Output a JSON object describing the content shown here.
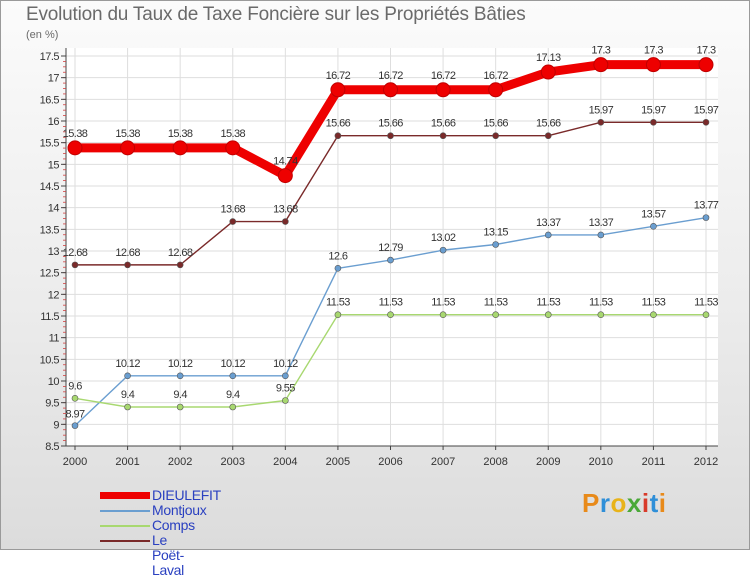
{
  "title": "Evolution du Taux de Taxe Foncière sur les Propriétés Bâties",
  "unit": "(en %)",
  "logo": {
    "text": "Proxiti",
    "letter_colors": [
      "#e88a1a",
      "#2f8fd8",
      "#e8b31a",
      "#4aa838",
      "#d83a2a",
      "#2f8fd8",
      "#e88a1a"
    ]
  },
  "chart_data": {
    "type": "line",
    "title": "Evolution du Taux de Taxe Foncière sur les Propriétés Bâties",
    "ylabel": "(en %)",
    "xlabel": "",
    "ylim": [
      8.5,
      17.5
    ],
    "y_ticks": [
      "8.5",
      "9",
      "9.5",
      "10",
      "10.5",
      "11",
      "11.5",
      "12",
      "12.5",
      "13",
      "13.5",
      "14",
      "14.5",
      "15",
      "15.5",
      "16",
      "16.5",
      "17",
      "17.5"
    ],
    "x": [
      "2000",
      "2001",
      "2002",
      "2003",
      "2004",
      "2005",
      "2006",
      "2007",
      "2008",
      "2009",
      "2010",
      "2011",
      "2012"
    ],
    "legend_position": "bottom-left",
    "series": [
      {
        "name": "DIEULEFIT",
        "color": "#ee0000",
        "values": [
          15.38,
          15.38,
          15.38,
          15.38,
          14.74,
          16.72,
          16.72,
          16.72,
          16.72,
          17.13,
          17.3,
          17.3,
          17.3
        ],
        "labels": [
          "15.38",
          "15.38",
          "15.38",
          "15.38",
          "14.74",
          "16.72",
          "16.72",
          "16.72",
          "16.72",
          "17.13",
          "17.3",
          "17.3",
          "17.3"
        ]
      },
      {
        "name": "Montjoux",
        "color": "#6a9ed0",
        "values": [
          8.97,
          10.12,
          10.12,
          10.12,
          10.12,
          12.6,
          12.79,
          13.02,
          13.15,
          13.37,
          13.37,
          13.57,
          13.77
        ],
        "labels": [
          "8.97",
          "10.12",
          "10.12",
          "10.12",
          "10.12",
          "12.6",
          "12.79",
          "13.02",
          "13.15",
          "13.37",
          "13.37",
          "13.57",
          "13.77"
        ]
      },
      {
        "name": "Comps",
        "color": "#a8d870",
        "values": [
          9.6,
          9.4,
          9.4,
          9.4,
          9.55,
          11.53,
          11.53,
          11.53,
          11.53,
          11.53,
          11.53,
          11.53,
          11.53
        ],
        "labels": [
          "9.6",
          "9.4",
          "9.4",
          "9.4",
          "9.55",
          "11.53",
          "11.53",
          "11.53",
          "11.53",
          "11.53",
          "11.53",
          "11.53",
          "11.53"
        ]
      },
      {
        "name": "Le Poët-Laval",
        "color": "#7a2a2a",
        "values": [
          12.68,
          12.68,
          12.68,
          13.68,
          13.68,
          15.66,
          15.66,
          15.66,
          15.66,
          15.66,
          15.97,
          15.97,
          15.97
        ],
        "labels": [
          "12.68",
          "12.68",
          "12.68",
          "13.68",
          "13.68",
          "15.66",
          "15.66",
          "15.66",
          "15.66",
          "15.66",
          "15.97",
          "15.97",
          "15.97"
        ]
      }
    ]
  }
}
